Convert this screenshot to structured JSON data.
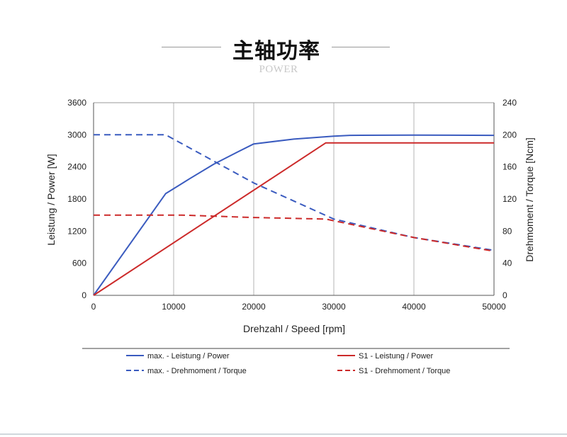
{
  "header": {
    "title": "主轴功率",
    "subtitle": "POWER"
  },
  "chart_data": {
    "type": "line",
    "xlabel": "Drehzahl / Speed [rpm]",
    "ylabel_left": "Leistung / Power [W]",
    "ylabel_right": "Drehmoment / Torque [Ncm]",
    "xlim": [
      0,
      50000
    ],
    "ylim_left": [
      0,
      3600
    ],
    "ylim_right": [
      0,
      240
    ],
    "x_ticks": [
      "0",
      "10000",
      "20000",
      "30000",
      "40000",
      "50000"
    ],
    "y_left_ticks": [
      "0",
      "600",
      "1200",
      "1800",
      "2400",
      "3000",
      "3600"
    ],
    "y_right_ticks": [
      "0",
      "40",
      "80",
      "120",
      "160",
      "200",
      "240"
    ],
    "grid": "vertical",
    "legend_position": "bottom",
    "series": [
      {
        "name": "max. - Leistung / Power",
        "axis": "left",
        "color": "#3a5bbf",
        "style": "solid",
        "x": [
          0,
          9000,
          12000,
          15000,
          18000,
          20000,
          25000,
          30000,
          32000,
          40000,
          50000
        ],
        "y": [
          0,
          1900,
          2180,
          2450,
          2680,
          2830,
          2920,
          2975,
          2990,
          2995,
          2990
        ]
      },
      {
        "name": "max. - Drehmoment / Torque",
        "axis": "right",
        "color": "#3a5bbf",
        "style": "dashed",
        "x": [
          0,
          9000,
          20000,
          30000,
          40000,
          50000
        ],
        "y": [
          200,
          200,
          140,
          95,
          72,
          56
        ]
      },
      {
        "name": "S1 - Leistung / Power",
        "axis": "left",
        "color": "#cc2a2a",
        "style": "solid",
        "x": [
          0,
          29000,
          35000,
          50000
        ],
        "y": [
          0,
          2850,
          2850,
          2850
        ]
      },
      {
        "name": "S1 - Drehmoment / Torque",
        "axis": "right",
        "color": "#cc2a2a",
        "style": "dashed",
        "x": [
          0,
          11000,
          20000,
          29000,
          40000,
          50000
        ],
        "y": [
          100,
          100,
          97,
          95,
          72,
          55
        ]
      }
    ]
  }
}
